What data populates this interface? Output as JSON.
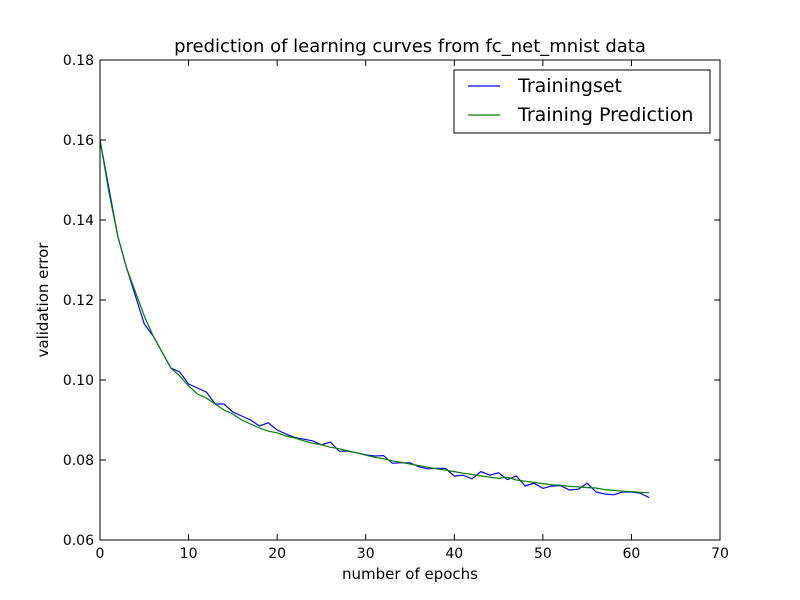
{
  "chart_data": {
    "type": "line",
    "title": "prediction of learning curves from fc_net_mnist data",
    "xlabel": "number of epochs",
    "ylabel": "validation error",
    "xlim": [
      0,
      70
    ],
    "ylim": [
      0.06,
      0.18
    ],
    "x_ticks": [
      "0",
      "10",
      "20",
      "30",
      "40",
      "50",
      "60",
      "70"
    ],
    "y_ticks": [
      "0.06",
      "0.08",
      "0.10",
      "0.12",
      "0.14",
      "0.16",
      "0.18"
    ],
    "grid": false,
    "legend_position": "top-right",
    "series": [
      {
        "name": "Trainingset",
        "color": "#0000ff",
        "values": [
          0.16,
          0.148,
          0.136,
          0.128,
          0.121,
          0.114,
          0.111,
          0.107,
          0.103,
          0.102,
          0.099,
          0.098,
          0.097,
          0.094,
          0.094,
          0.092,
          0.091,
          0.09,
          0.0885,
          0.0893,
          0.0875,
          0.0865,
          0.0856,
          0.0852,
          0.0848,
          0.0838,
          0.0845,
          0.0822,
          0.0822,
          0.0818,
          0.0813,
          0.081,
          0.0811,
          0.0792,
          0.0793,
          0.0793,
          0.0783,
          0.0778,
          0.0779,
          0.0779,
          0.076,
          0.0762,
          0.0753,
          0.0771,
          0.0762,
          0.0768,
          0.0751,
          0.076,
          0.0735,
          0.0742,
          0.0729,
          0.0735,
          0.0736,
          0.0725,
          0.0727,
          0.0742,
          0.072,
          0.0715,
          0.0713,
          0.072,
          0.072,
          0.0717,
          0.0706
        ]
      },
      {
        "name": "Training Prediction",
        "color": "#008000",
        "values": [
          0.16,
          0.147,
          0.136,
          0.128,
          0.122,
          0.116,
          0.111,
          0.107,
          0.103,
          0.101,
          0.0985,
          0.0965,
          0.0955,
          0.094,
          0.0925,
          0.0915,
          0.09,
          0.089,
          0.088,
          0.0872,
          0.0868,
          0.086,
          0.0855,
          0.0848,
          0.0842,
          0.0838,
          0.0832,
          0.0828,
          0.0823,
          0.0818,
          0.0812,
          0.0807,
          0.0803,
          0.0798,
          0.0794,
          0.079,
          0.0786,
          0.0782,
          0.0778,
          0.0775,
          0.0771,
          0.0767,
          0.0764,
          0.076,
          0.0757,
          0.0754,
          0.0757,
          0.075,
          0.0747,
          0.0744,
          0.0741,
          0.0738,
          0.0737,
          0.0734,
          0.0733,
          0.0731,
          0.073,
          0.0726,
          0.0724,
          0.0722,
          0.0721,
          0.0719,
          0.0718
        ]
      }
    ]
  }
}
